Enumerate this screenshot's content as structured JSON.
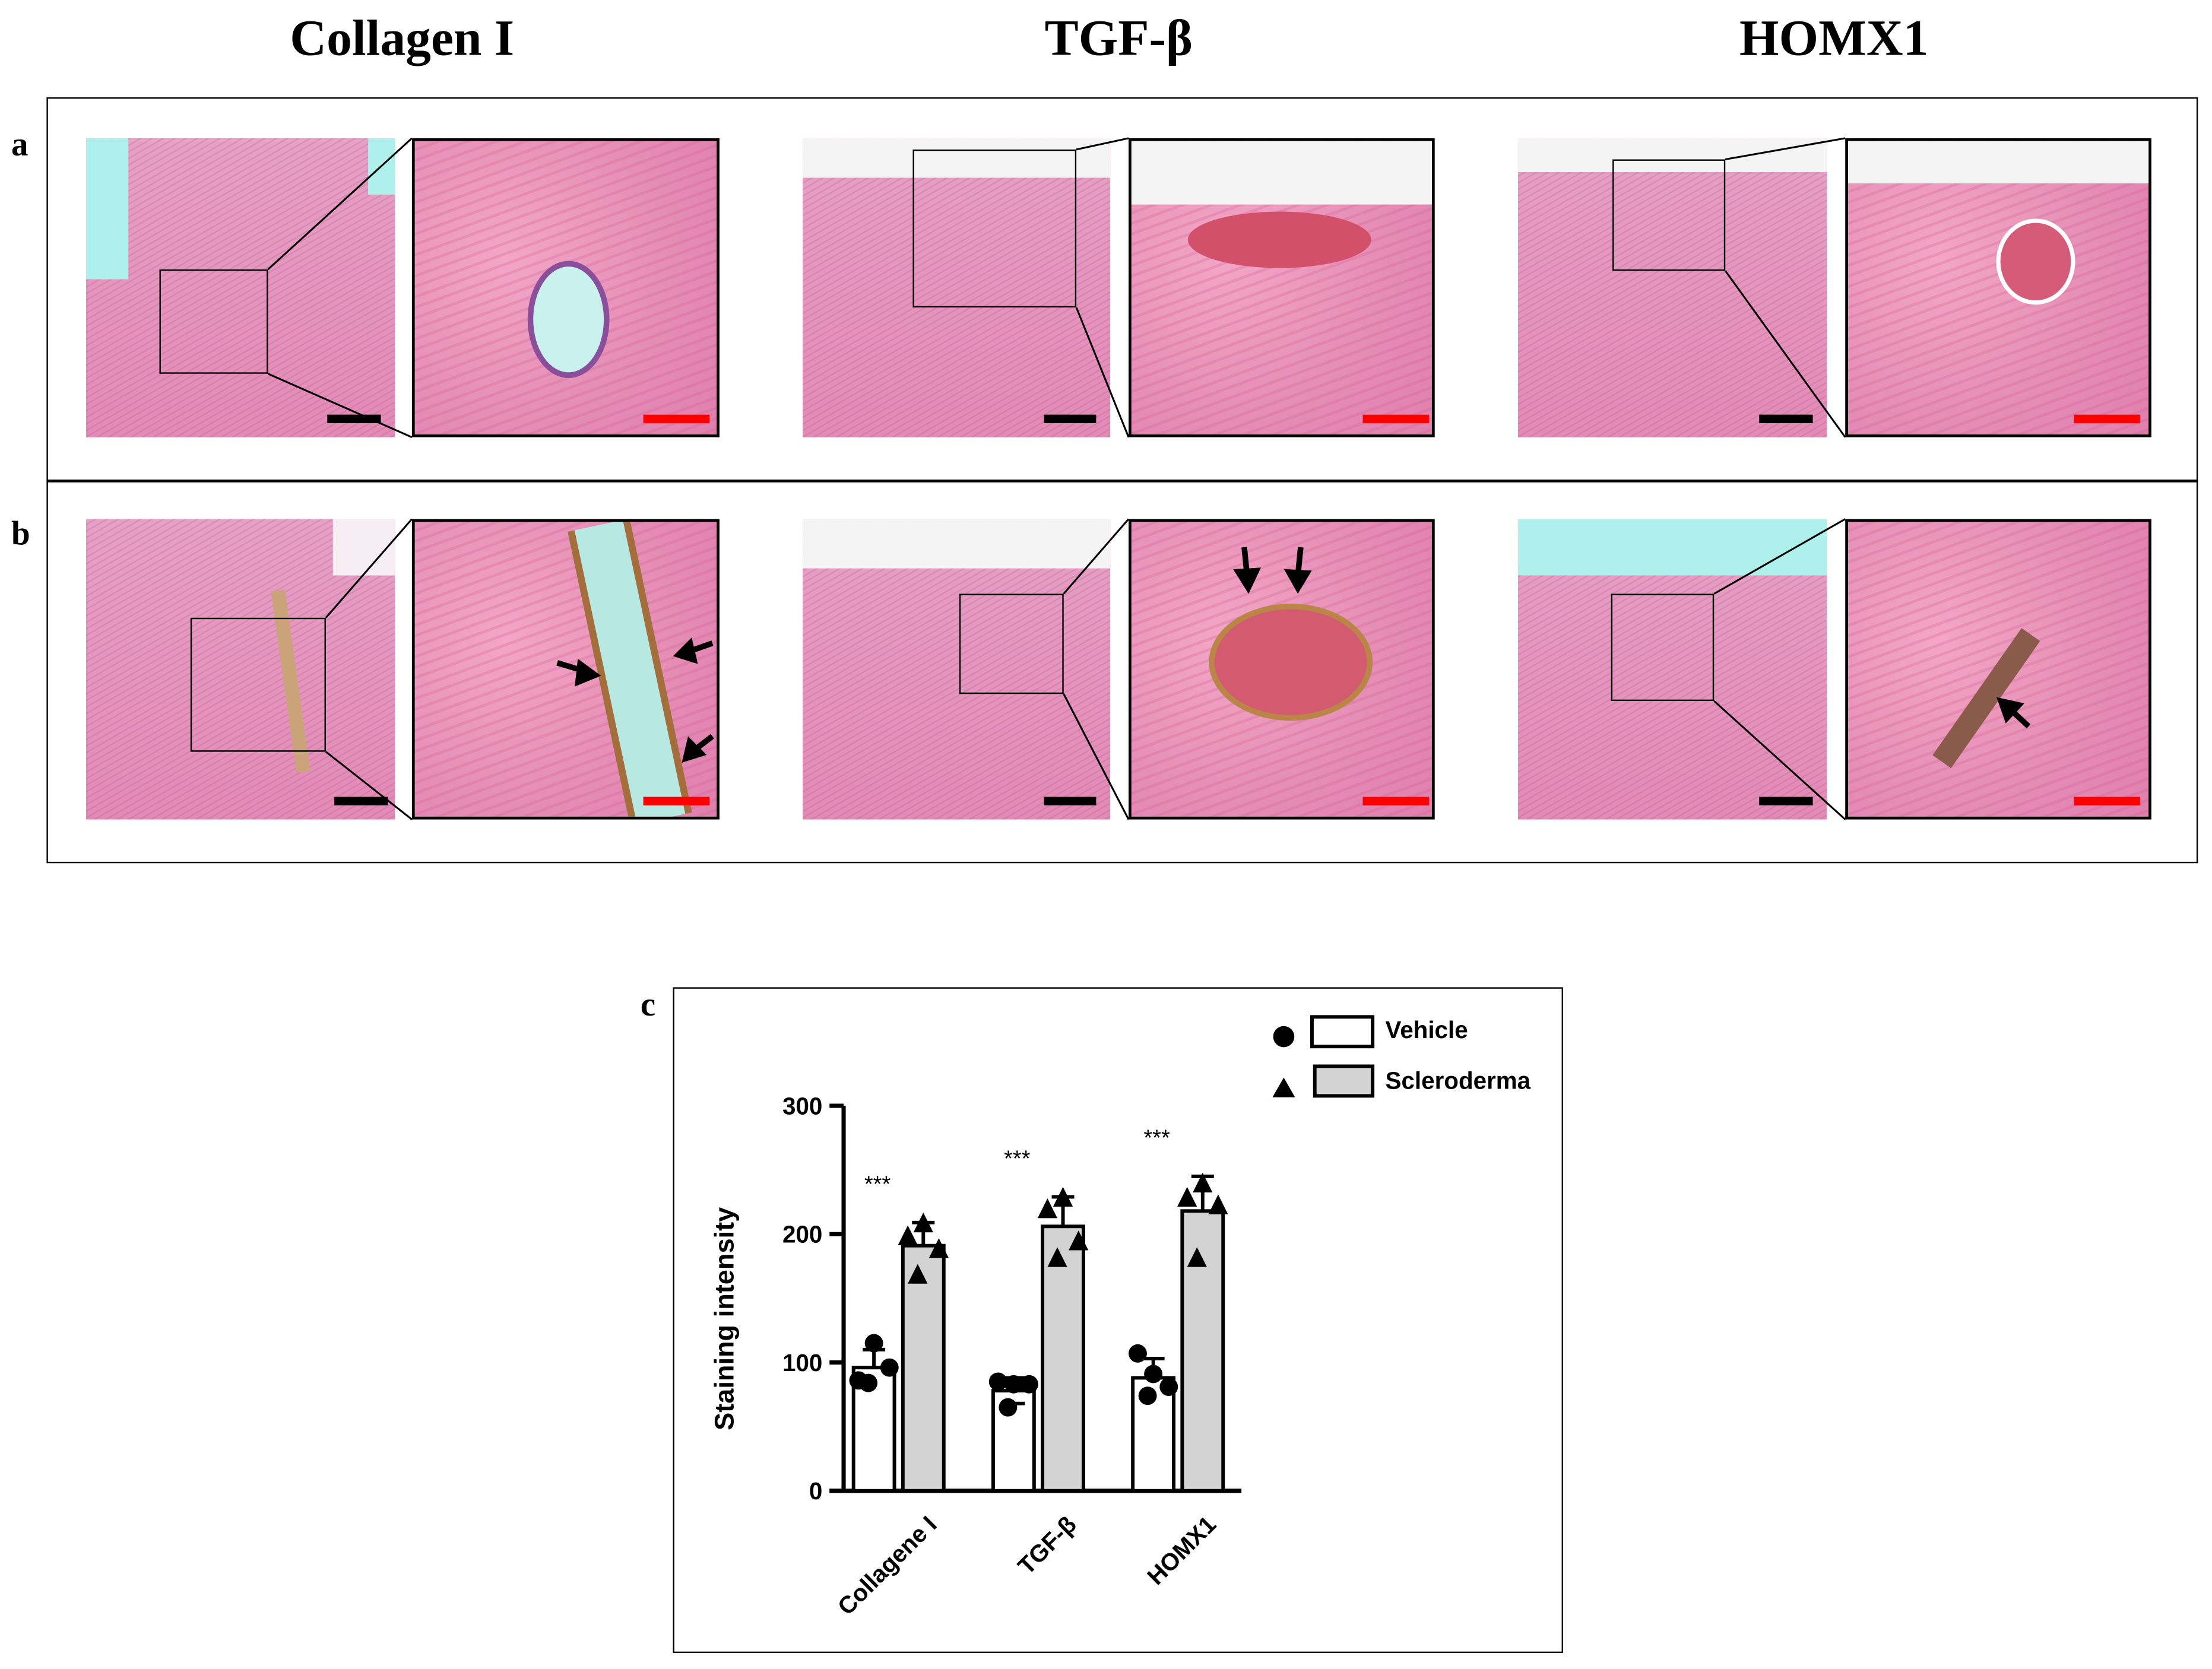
{
  "columns": [
    "Collagen I",
    "TGF-β",
    "HOMX1"
  ],
  "row_labels": [
    "a",
    "b",
    "c"
  ],
  "colors": {
    "scale_bar_low": "#000000",
    "scale_bar_high": "#ff0000",
    "vehicle_fill": "#ffffff",
    "scleroderma_fill": "#d3d3d3"
  },
  "chart_data": {
    "type": "bar",
    "title": "",
    "xlabel": "",
    "ylabel": "Staining intensity",
    "ylim": [
      0,
      300
    ],
    "yticks": [
      0,
      100,
      200,
      300
    ],
    "categories": [
      "Collagene I",
      "TGF-β",
      "HOMX1"
    ],
    "legend_position": "top-right",
    "grid": false,
    "series": [
      {
        "name": "Vehicle",
        "marker": "circle",
        "fill": "#ffffff",
        "values": [
          96,
          78,
          88
        ],
        "sd": [
          14,
          10,
          15
        ],
        "points": [
          [
            86,
            115,
            96,
            84
          ],
          [
            85,
            83,
            83,
            65
          ],
          [
            107,
            91,
            81,
            74
          ]
        ]
      },
      {
        "name": "Scleroderma",
        "marker": "triangle",
        "fill": "#d3d3d3",
        "values": [
          191,
          206,
          218
        ],
        "sd": [
          18,
          23,
          27
        ],
        "points": [
          [
            198,
            208,
            188,
            168
          ],
          [
            219,
            228,
            194,
            181
          ],
          [
            228,
            239,
            222,
            181
          ]
        ]
      }
    ],
    "annotations": [
      "***",
      "***",
      "***"
    ]
  }
}
